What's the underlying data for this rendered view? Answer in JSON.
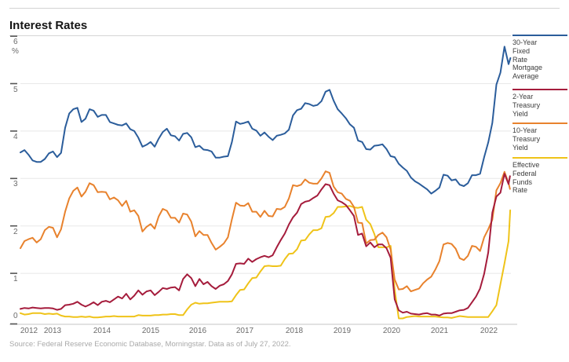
{
  "title": "Interest Rates",
  "source_note": "Source: Federal Reserve Economic Database, Morningstar. Data as of July 27, 2022.",
  "chart_data": {
    "type": "line",
    "ylabel_unit": "%",
    "ylim": [
      0,
      6
    ],
    "y_ticks": [
      "6",
      "5",
      "4",
      "3",
      "2",
      "1",
      "0"
    ],
    "x_ticks": [
      "2012",
      "2013",
      "2014",
      "2015",
      "2016",
      "2017",
      "2018",
      "2019",
      "2020",
      "2021",
      "2022"
    ],
    "x_start": 2012.5417,
    "x_step_months": 1,
    "grid": "horizontal",
    "legend_position": "right",
    "series": [
      {
        "id": "mortgage-30yr",
        "name": "30-Year Fixed Rate Mortgage Average",
        "legend_label": "30-Year\nFixed\nRate\nMortgage\nAverage",
        "color": "#2b5d9b",
        "values": [
          3.55,
          3.6,
          3.5,
          3.38,
          3.35,
          3.35,
          3.41,
          3.53,
          3.57,
          3.45,
          3.54,
          4.07,
          4.37,
          4.46,
          4.49,
          4.19,
          4.26,
          4.46,
          4.43,
          4.3,
          4.34,
          4.34,
          4.19,
          4.16,
          4.13,
          4.12,
          4.16,
          4.04,
          4.0,
          3.86,
          3.67,
          3.71,
          3.77,
          3.67,
          3.84,
          3.98,
          4.05,
          3.91,
          3.89,
          3.8,
          3.94,
          3.96,
          3.87,
          3.66,
          3.69,
          3.61,
          3.6,
          3.57,
          3.44,
          3.44,
          3.46,
          3.47,
          3.77,
          4.2,
          4.15,
          4.17,
          4.2,
          4.05,
          4.01,
          3.9,
          3.97,
          3.88,
          3.81,
          3.9,
          3.92,
          3.95,
          4.03,
          4.33,
          4.44,
          4.47,
          4.59,
          4.57,
          4.53,
          4.55,
          4.63,
          4.83,
          4.87,
          4.64,
          4.46,
          4.37,
          4.27,
          4.14,
          4.07,
          3.8,
          3.77,
          3.62,
          3.61,
          3.69,
          3.7,
          3.72,
          3.62,
          3.47,
          3.45,
          3.31,
          3.23,
          3.16,
          3.02,
          2.94,
          2.89,
          2.83,
          2.77,
          2.68,
          2.74,
          2.81,
          3.08,
          3.06,
          2.96,
          2.98,
          2.87,
          2.84,
          2.9,
          3.07,
          3.07,
          3.1,
          3.45,
          3.76,
          4.17,
          4.98,
          5.23,
          5.78,
          5.41
        ],
        "tail": [
          [
            2022.58,
            5.54
          ]
        ]
      },
      {
        "id": "treasury-2yr",
        "name": "2-Year Treasury Yield",
        "legend_label": "2-Year\nTreasury\nYield",
        "color": "#a51c3c",
        "values": [
          0.25,
          0.27,
          0.26,
          0.28,
          0.27,
          0.26,
          0.27,
          0.27,
          0.26,
          0.23,
          0.25,
          0.33,
          0.34,
          0.36,
          0.4,
          0.34,
          0.3,
          0.34,
          0.39,
          0.33,
          0.4,
          0.42,
          0.39,
          0.45,
          0.51,
          0.47,
          0.57,
          0.45,
          0.53,
          0.64,
          0.55,
          0.62,
          0.64,
          0.54,
          0.61,
          0.69,
          0.67,
          0.7,
          0.71,
          0.64,
          0.88,
          0.98,
          0.9,
          0.73,
          0.88,
          0.77,
          0.82,
          0.73,
          0.67,
          0.74,
          0.77,
          0.84,
          0.98,
          1.2,
          1.21,
          1.2,
          1.31,
          1.24,
          1.3,
          1.34,
          1.37,
          1.34,
          1.38,
          1.55,
          1.7,
          1.84,
          2.03,
          2.18,
          2.28,
          2.46,
          2.51,
          2.53,
          2.59,
          2.64,
          2.77,
          2.88,
          2.86,
          2.68,
          2.54,
          2.5,
          2.44,
          2.33,
          2.21,
          1.81,
          1.84,
          1.57,
          1.65,
          1.55,
          1.61,
          1.61,
          1.53,
          1.33,
          0.45,
          0.22,
          0.17,
          0.19,
          0.15,
          0.14,
          0.13,
          0.15,
          0.16,
          0.13,
          0.13,
          0.11,
          0.15,
          0.16,
          0.16,
          0.19,
          0.22,
          0.23,
          0.27,
          0.39,
          0.51,
          0.68,
          0.99,
          1.44,
          2.28,
          2.62,
          2.7,
          3.1,
          2.88
        ],
        "tail": [
          [
            2022.57,
            3.05
          ]
        ]
      },
      {
        "id": "treasury-10yr",
        "name": "10-Year Treasury Yield",
        "legend_label": "10-Year\nTreasury\nYield",
        "color": "#e8822d",
        "values": [
          1.53,
          1.68,
          1.72,
          1.75,
          1.65,
          1.72,
          1.91,
          1.98,
          1.96,
          1.76,
          1.93,
          2.3,
          2.58,
          2.74,
          2.81,
          2.62,
          2.72,
          2.9,
          2.86,
          2.71,
          2.72,
          2.71,
          2.56,
          2.6,
          2.54,
          2.42,
          2.53,
          2.3,
          2.33,
          2.21,
          1.88,
          1.98,
          2.04,
          1.94,
          2.2,
          2.36,
          2.32,
          2.17,
          2.17,
          2.07,
          2.26,
          2.24,
          2.09,
          1.78,
          1.89,
          1.81,
          1.81,
          1.64,
          1.5,
          1.56,
          1.63,
          1.76,
          2.14,
          2.49,
          2.43,
          2.42,
          2.48,
          2.3,
          2.3,
          2.19,
          2.32,
          2.21,
          2.2,
          2.36,
          2.35,
          2.4,
          2.58,
          2.86,
          2.84,
          2.87,
          2.98,
          2.91,
          2.89,
          2.89,
          3.0,
          3.15,
          3.12,
          2.83,
          2.71,
          2.68,
          2.57,
          2.53,
          2.4,
          2.07,
          2.06,
          1.63,
          1.7,
          1.71,
          1.81,
          1.86,
          1.76,
          1.5,
          0.87,
          0.66,
          0.67,
          0.73,
          0.62,
          0.65,
          0.68,
          0.79,
          0.87,
          0.93,
          1.08,
          1.26,
          1.61,
          1.64,
          1.62,
          1.52,
          1.32,
          1.28,
          1.37,
          1.58,
          1.56,
          1.47,
          1.76,
          1.93,
          2.13,
          2.75,
          2.9,
          3.14,
          2.9
        ],
        "tail": [
          [
            2022.57,
            2.78
          ]
        ]
      },
      {
        "id": "fed-funds",
        "name": "Effective Federal Funds Rate",
        "legend_label": "Effective\nFederal\nFunds\nRate",
        "color": "#efc319",
        "values": [
          0.16,
          0.13,
          0.14,
          0.16,
          0.16,
          0.16,
          0.14,
          0.15,
          0.14,
          0.15,
          0.11,
          0.09,
          0.09,
          0.08,
          0.08,
          0.09,
          0.08,
          0.09,
          0.07,
          0.07,
          0.08,
          0.09,
          0.09,
          0.1,
          0.09,
          0.09,
          0.09,
          0.09,
          0.09,
          0.12,
          0.11,
          0.11,
          0.11,
          0.12,
          0.12,
          0.13,
          0.13,
          0.14,
          0.14,
          0.12,
          0.12,
          0.24,
          0.34,
          0.38,
          0.36,
          0.37,
          0.37,
          0.38,
          0.39,
          0.4,
          0.4,
          0.4,
          0.41,
          0.54,
          0.65,
          0.66,
          0.79,
          0.9,
          0.91,
          1.04,
          1.15,
          1.16,
          1.15,
          1.15,
          1.16,
          1.3,
          1.41,
          1.42,
          1.51,
          1.69,
          1.7,
          1.82,
          1.91,
          1.91,
          1.95,
          2.19,
          2.2,
          2.27,
          2.4,
          2.4,
          2.41,
          2.42,
          2.39,
          2.38,
          2.4,
          2.13,
          2.04,
          1.83,
          1.55,
          1.55,
          1.55,
          1.58,
          0.65,
          0.05,
          0.05,
          0.08,
          0.09,
          0.1,
          0.09,
          0.09,
          0.09,
          0.09,
          0.09,
          0.08,
          0.07,
          0.07,
          0.06,
          0.08,
          0.1,
          0.09,
          0.08,
          0.08,
          0.08,
          0.08,
          0.08,
          0.08,
          0.2,
          0.33,
          0.77,
          1.21,
          1.68
        ],
        "tail": [
          [
            2022.575,
            2.33
          ]
        ]
      }
    ]
  }
}
